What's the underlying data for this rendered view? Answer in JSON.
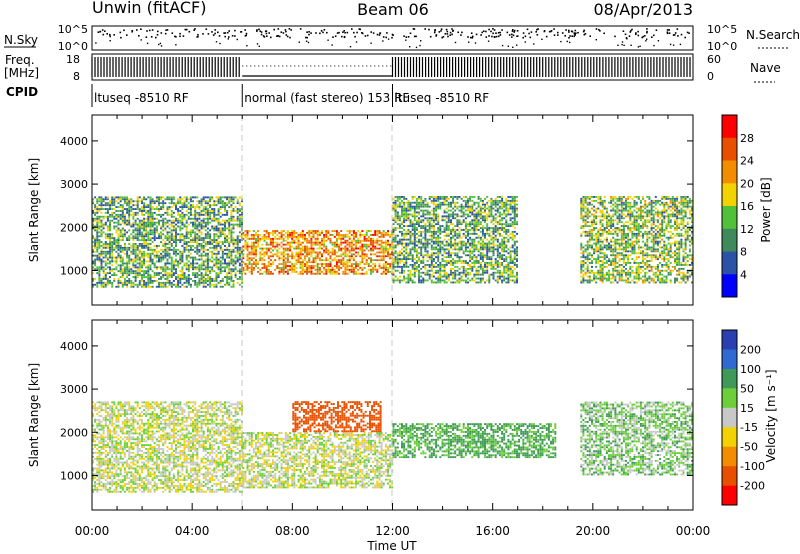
{
  "header": {
    "station": "Unwin (fitACF)",
    "beam": "Beam 06",
    "date": "08/Apr/2013"
  },
  "status_panels": {
    "nsky": {
      "label": "N.Sky",
      "ticks": [
        "10^5",
        "10^0"
      ]
    },
    "nsearch": {
      "label": "N.Search",
      "ticks": [
        "10^5",
        "10^0"
      ]
    },
    "freq": {
      "label_line1": "Freq.",
      "label_line2": "[MHz]",
      "ticks": [
        "18",
        "8"
      ]
    },
    "nave": {
      "label": "Nave",
      "ticks": [
        "60",
        "0"
      ]
    },
    "cpid": {
      "label": "CPID",
      "segments": [
        {
          "name": "ltuseq -8510 RF",
          "start_h": 0,
          "end_h": 6
        },
        {
          "name": "normal (fast stereo) 153 RF",
          "start_h": 6,
          "end_h": 12
        },
        {
          "name": "ltuseq -8510 RF",
          "start_h": 12,
          "end_h": 24
        }
      ]
    },
    "freq_mode": [
      {
        "start_h": 0,
        "end_h": 6,
        "level": "alternating"
      },
      {
        "start_h": 6,
        "end_h": 12,
        "level": "steady"
      },
      {
        "start_h": 12,
        "end_h": 24,
        "level": "alternating"
      }
    ]
  },
  "chart_data": [
    {
      "type": "heatmap",
      "name": "power-panel",
      "ylabel": "Slant Range [km]",
      "xlabel": "",
      "x_range_hours": [
        0,
        24
      ],
      "ylim": [
        200,
        4600
      ],
      "yticks": [
        "1000",
        "2000",
        "3000",
        "4000"
      ],
      "ytick_values": [
        1000,
        2000,
        3000,
        4000
      ],
      "colorbar": {
        "label": "Power [dB]",
        "ticks": [
          "4",
          "8",
          "12",
          "16",
          "20",
          "24",
          "28"
        ],
        "colors": [
          "#0000ff",
          "#2a52a6",
          "#3f8a5a",
          "#52c13a",
          "#f2d200",
          "#f28c00",
          "#e85000",
          "#ff0000"
        ]
      },
      "regions": [
        {
          "t0": 0,
          "t1": 6,
          "r0": 600,
          "r1": 2700,
          "value": 12
        },
        {
          "t0": 6,
          "t1": 12,
          "r0": 900,
          "r1": 1900,
          "value": 22
        },
        {
          "t0": 12,
          "t1": 17,
          "r0": 700,
          "r1": 2700,
          "value": 12
        },
        {
          "t0": 19.5,
          "t1": 24,
          "r0": 700,
          "r1": 2700,
          "value": 14
        }
      ]
    },
    {
      "type": "heatmap",
      "name": "velocity-panel",
      "ylabel": "Slant Range [km]",
      "xlabel": "Time UT",
      "x_range_hours": [
        0,
        24
      ],
      "ylim": [
        200,
        4600
      ],
      "yticks": [
        "1000",
        "2000",
        "3000",
        "4000"
      ],
      "ytick_values": [
        1000,
        2000,
        3000,
        4000
      ],
      "xticks": [
        "00:00",
        "04:00",
        "08:00",
        "12:00",
        "16:00",
        "20:00",
        "00:00"
      ],
      "xtick_values": [
        0,
        4,
        8,
        12,
        16,
        20,
        24
      ],
      "colorbar": {
        "label": "Velocity [m s⁻¹]",
        "ticks": [
          "200",
          "100",
          "50",
          "15",
          "-15",
          "-50",
          "-100",
          "-200"
        ],
        "colors": [
          "#2a3fb0",
          "#2f6ad0",
          "#3f9a5a",
          "#6ccf3a",
          "#c8c8c8",
          "#f2d200",
          "#f28c00",
          "#e85000",
          "#ff0000"
        ]
      },
      "regions": [
        {
          "t0": 0,
          "t1": 6,
          "r0": 600,
          "r1": 2700,
          "value": 0
        },
        {
          "t0": 6,
          "t1": 12,
          "r0": 700,
          "r1": 2000,
          "value": 0
        },
        {
          "t0": 8,
          "t1": 11.5,
          "r0": 2000,
          "r1": 2700,
          "value": -150
        },
        {
          "t0": 12,
          "t1": 18.5,
          "r0": 1400,
          "r1": 2200,
          "value": 60
        },
        {
          "t0": 19.5,
          "t1": 24,
          "r0": 1000,
          "r1": 2700,
          "value": 30
        }
      ]
    }
  ]
}
